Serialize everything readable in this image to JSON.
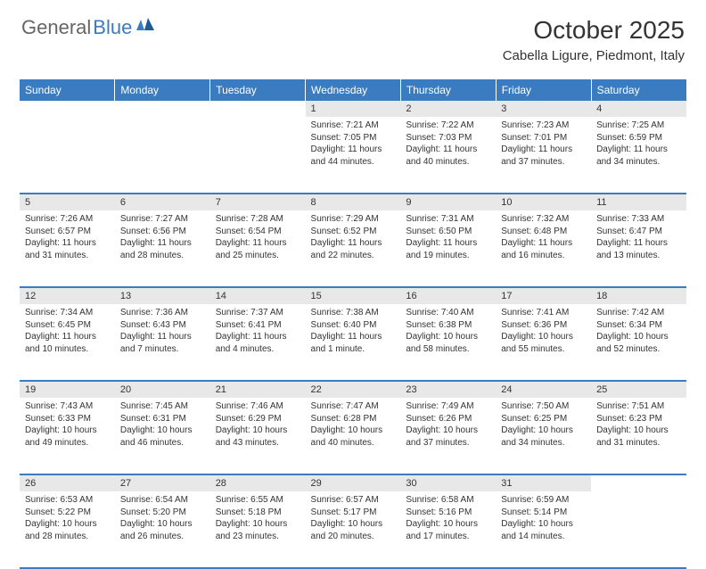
{
  "logo": {
    "general": "General",
    "blue": "Blue"
  },
  "title": "October 2025",
  "location": "Cabella Ligure, Piedmont, Italy",
  "colors": {
    "header_bg": "#3b7bbf",
    "header_text": "#ffffff",
    "daynum_bg": "#e8e8e8",
    "border": "#3b7bbf",
    "text": "#333333",
    "logo_gray": "#666666",
    "logo_blue": "#3b7bbf"
  },
  "day_headers": [
    "Sunday",
    "Monday",
    "Tuesday",
    "Wednesday",
    "Thursday",
    "Friday",
    "Saturday"
  ],
  "weeks": [
    [
      {
        "num": "",
        "lines": []
      },
      {
        "num": "",
        "lines": []
      },
      {
        "num": "",
        "lines": []
      },
      {
        "num": "1",
        "lines": [
          "Sunrise: 7:21 AM",
          "Sunset: 7:05 PM",
          "Daylight: 11 hours",
          "and 44 minutes."
        ]
      },
      {
        "num": "2",
        "lines": [
          "Sunrise: 7:22 AM",
          "Sunset: 7:03 PM",
          "Daylight: 11 hours",
          "and 40 minutes."
        ]
      },
      {
        "num": "3",
        "lines": [
          "Sunrise: 7:23 AM",
          "Sunset: 7:01 PM",
          "Daylight: 11 hours",
          "and 37 minutes."
        ]
      },
      {
        "num": "4",
        "lines": [
          "Sunrise: 7:25 AM",
          "Sunset: 6:59 PM",
          "Daylight: 11 hours",
          "and 34 minutes."
        ]
      }
    ],
    [
      {
        "num": "5",
        "lines": [
          "Sunrise: 7:26 AM",
          "Sunset: 6:57 PM",
          "Daylight: 11 hours",
          "and 31 minutes."
        ]
      },
      {
        "num": "6",
        "lines": [
          "Sunrise: 7:27 AM",
          "Sunset: 6:56 PM",
          "Daylight: 11 hours",
          "and 28 minutes."
        ]
      },
      {
        "num": "7",
        "lines": [
          "Sunrise: 7:28 AM",
          "Sunset: 6:54 PM",
          "Daylight: 11 hours",
          "and 25 minutes."
        ]
      },
      {
        "num": "8",
        "lines": [
          "Sunrise: 7:29 AM",
          "Sunset: 6:52 PM",
          "Daylight: 11 hours",
          "and 22 minutes."
        ]
      },
      {
        "num": "9",
        "lines": [
          "Sunrise: 7:31 AM",
          "Sunset: 6:50 PM",
          "Daylight: 11 hours",
          "and 19 minutes."
        ]
      },
      {
        "num": "10",
        "lines": [
          "Sunrise: 7:32 AM",
          "Sunset: 6:48 PM",
          "Daylight: 11 hours",
          "and 16 minutes."
        ]
      },
      {
        "num": "11",
        "lines": [
          "Sunrise: 7:33 AM",
          "Sunset: 6:47 PM",
          "Daylight: 11 hours",
          "and 13 minutes."
        ]
      }
    ],
    [
      {
        "num": "12",
        "lines": [
          "Sunrise: 7:34 AM",
          "Sunset: 6:45 PM",
          "Daylight: 11 hours",
          "and 10 minutes."
        ]
      },
      {
        "num": "13",
        "lines": [
          "Sunrise: 7:36 AM",
          "Sunset: 6:43 PM",
          "Daylight: 11 hours",
          "and 7 minutes."
        ]
      },
      {
        "num": "14",
        "lines": [
          "Sunrise: 7:37 AM",
          "Sunset: 6:41 PM",
          "Daylight: 11 hours",
          "and 4 minutes."
        ]
      },
      {
        "num": "15",
        "lines": [
          "Sunrise: 7:38 AM",
          "Sunset: 6:40 PM",
          "Daylight: 11 hours",
          "and 1 minute."
        ]
      },
      {
        "num": "16",
        "lines": [
          "Sunrise: 7:40 AM",
          "Sunset: 6:38 PM",
          "Daylight: 10 hours",
          "and 58 minutes."
        ]
      },
      {
        "num": "17",
        "lines": [
          "Sunrise: 7:41 AM",
          "Sunset: 6:36 PM",
          "Daylight: 10 hours",
          "and 55 minutes."
        ]
      },
      {
        "num": "18",
        "lines": [
          "Sunrise: 7:42 AM",
          "Sunset: 6:34 PM",
          "Daylight: 10 hours",
          "and 52 minutes."
        ]
      }
    ],
    [
      {
        "num": "19",
        "lines": [
          "Sunrise: 7:43 AM",
          "Sunset: 6:33 PM",
          "Daylight: 10 hours",
          "and 49 minutes."
        ]
      },
      {
        "num": "20",
        "lines": [
          "Sunrise: 7:45 AM",
          "Sunset: 6:31 PM",
          "Daylight: 10 hours",
          "and 46 minutes."
        ]
      },
      {
        "num": "21",
        "lines": [
          "Sunrise: 7:46 AM",
          "Sunset: 6:29 PM",
          "Daylight: 10 hours",
          "and 43 minutes."
        ]
      },
      {
        "num": "22",
        "lines": [
          "Sunrise: 7:47 AM",
          "Sunset: 6:28 PM",
          "Daylight: 10 hours",
          "and 40 minutes."
        ]
      },
      {
        "num": "23",
        "lines": [
          "Sunrise: 7:49 AM",
          "Sunset: 6:26 PM",
          "Daylight: 10 hours",
          "and 37 minutes."
        ]
      },
      {
        "num": "24",
        "lines": [
          "Sunrise: 7:50 AM",
          "Sunset: 6:25 PM",
          "Daylight: 10 hours",
          "and 34 minutes."
        ]
      },
      {
        "num": "25",
        "lines": [
          "Sunrise: 7:51 AM",
          "Sunset: 6:23 PM",
          "Daylight: 10 hours",
          "and 31 minutes."
        ]
      }
    ],
    [
      {
        "num": "26",
        "lines": [
          "Sunrise: 6:53 AM",
          "Sunset: 5:22 PM",
          "Daylight: 10 hours",
          "and 28 minutes."
        ]
      },
      {
        "num": "27",
        "lines": [
          "Sunrise: 6:54 AM",
          "Sunset: 5:20 PM",
          "Daylight: 10 hours",
          "and 26 minutes."
        ]
      },
      {
        "num": "28",
        "lines": [
          "Sunrise: 6:55 AM",
          "Sunset: 5:18 PM",
          "Daylight: 10 hours",
          "and 23 minutes."
        ]
      },
      {
        "num": "29",
        "lines": [
          "Sunrise: 6:57 AM",
          "Sunset: 5:17 PM",
          "Daylight: 10 hours",
          "and 20 minutes."
        ]
      },
      {
        "num": "30",
        "lines": [
          "Sunrise: 6:58 AM",
          "Sunset: 5:16 PM",
          "Daylight: 10 hours",
          "and 17 minutes."
        ]
      },
      {
        "num": "31",
        "lines": [
          "Sunrise: 6:59 AM",
          "Sunset: 5:14 PM",
          "Daylight: 10 hours",
          "and 14 minutes."
        ]
      },
      {
        "num": "",
        "lines": []
      }
    ]
  ]
}
